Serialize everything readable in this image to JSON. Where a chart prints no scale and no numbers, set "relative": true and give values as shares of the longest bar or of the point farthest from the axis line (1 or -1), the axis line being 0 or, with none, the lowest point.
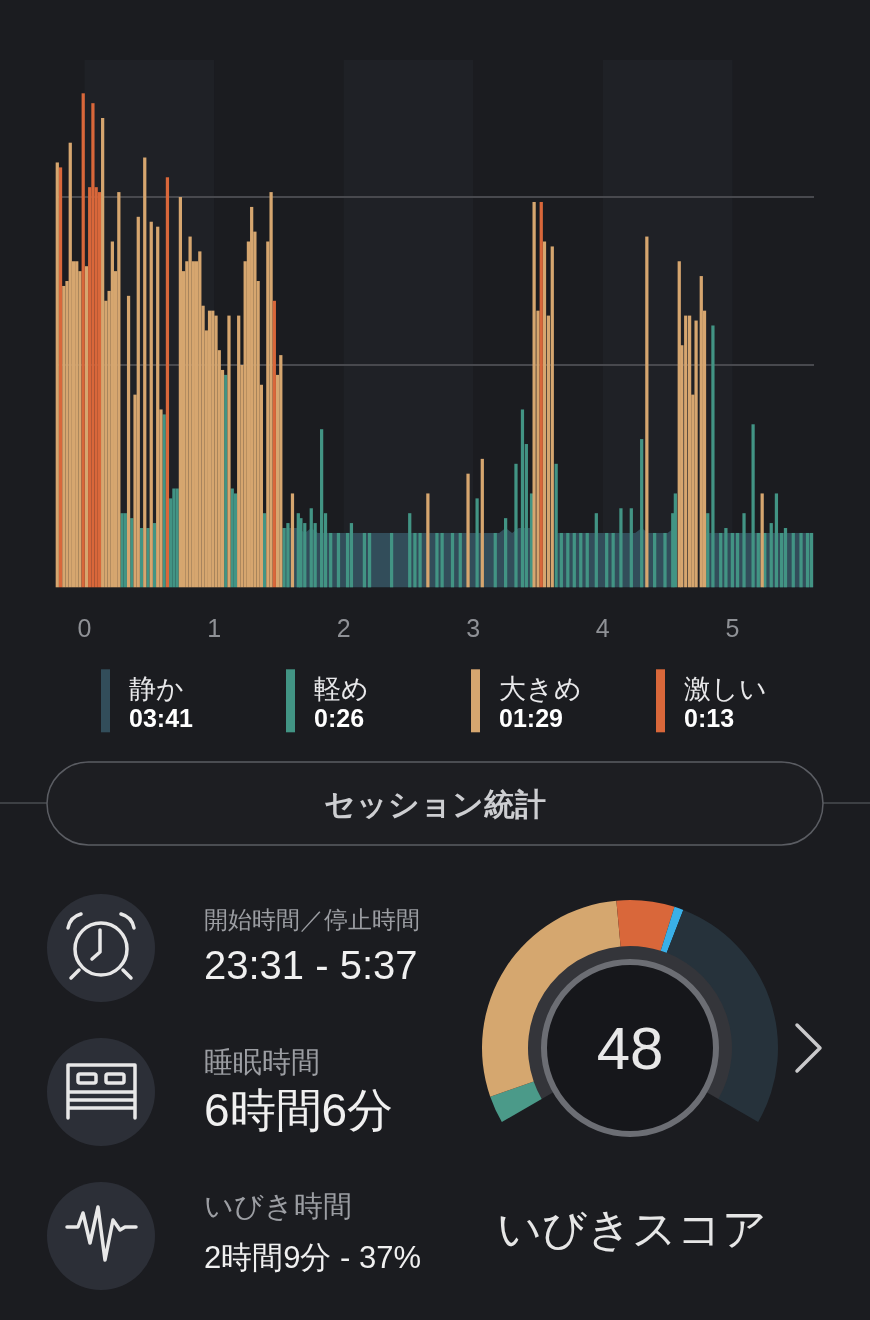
{
  "chart_data": [
    {
      "type": "bar",
      "relative": true,
      "xlim": [
        -0.22,
        5.63
      ],
      "xticks": [
        0,
        1,
        2,
        3,
        4,
        5
      ],
      "legend": "bottom",
      "bands": [
        {
          "axis": "x",
          "from": 0,
          "to": 1,
          "color": "#1f2126"
        },
        {
          "axis": "x",
          "from": 2,
          "to": 3,
          "color": "#1f2126"
        },
        {
          "axis": "x",
          "from": 4,
          "to": 5,
          "color": "#1f2126"
        }
      ],
      "ref_lines": [
        {
          "axis": "y",
          "value": 0.45,
          "color": "#48494e"
        },
        {
          "axis": "y",
          "value": 0.79,
          "color": "#48494e"
        }
      ],
      "series": [
        {
          "name": "静か",
          "type": "area",
          "color": "#324d5a",
          "x": [
            1.55,
            1.6,
            1.65,
            1.7,
            1.75,
            1.8,
            1.85,
            1.9,
            1.95,
            2,
            2.05,
            2.1,
            2.15,
            2.2,
            2.25,
            2.3,
            2.35,
            2.4,
            2.45,
            2.5,
            2.55,
            2.6,
            2.65,
            2.7,
            2.75,
            2.8,
            2.85,
            2.9,
            2.95,
            3,
            3.05,
            3.1,
            3.15,
            3.2,
            3.25,
            3.3,
            3.35,
            3.4,
            3.45,
            3.65,
            3.7,
            3.75,
            3.8,
            3.85,
            3.9,
            3.95,
            4,
            4.05,
            4.1,
            4.15,
            4.2,
            4.25,
            4.3,
            4.35,
            4.4,
            4.45,
            4.5,
            4.55,
            4.8,
            4.85,
            4.9,
            4.95,
            5,
            5.05,
            5.1,
            5.15,
            5.2,
            5.25,
            5.3,
            5.35,
            5.4,
            5.45,
            5.5,
            5.55,
            5.6,
            5.625
          ],
          "values": [
            0.12,
            0.12,
            0.12,
            0.11,
            0.12,
            0.11,
            0.11,
            0.11,
            0.11,
            0.11,
            0.11,
            0.11,
            0.11,
            0.11,
            0.11,
            0.11,
            0.11,
            0.11,
            0.11,
            0.11,
            0.11,
            0.11,
            0.11,
            0.11,
            0.11,
            0.11,
            0.11,
            0.11,
            0.11,
            0.11,
            0.11,
            0.11,
            0.11,
            0.11,
            0.12,
            0.11,
            0.12,
            0.12,
            0.12,
            0.11,
            0.11,
            0.11,
            0.11,
            0.11,
            0.11,
            0.11,
            0.11,
            0.11,
            0.11,
            0.11,
            0.11,
            0.11,
            0.12,
            0.11,
            0.11,
            0.11,
            0.11,
            0.12,
            0.11,
            0.11,
            0.11,
            0.11,
            0.11,
            0.11,
            0.11,
            0.11,
            0.11,
            0.11,
            0.11,
            0.11,
            0.11,
            0.11,
            0.11,
            0.11,
            0.11,
            0.11
          ]
        },
        {
          "name": "軽め",
          "color": "#429484",
          "x": [
            0.29,
            0.315,
            0.365,
            0.44,
            0.49,
            0.54,
            0.615,
            0.665,
            0.69,
            0.715,
            1.09,
            1.14,
            1.165,
            1.39,
            1.54,
            1.57,
            1.65,
            1.67,
            1.7,
            1.75,
            1.78,
            1.83,
            1.86,
            1.9,
            1.96,
            2.03,
            2.06,
            2.16,
            2.2,
            2.37,
            2.51,
            2.55,
            2.59,
            2.72,
            2.76,
            2.84,
            2.9,
            3.03,
            3.17,
            3.25,
            3.33,
            3.38,
            3.41,
            3.45,
            3.64,
            3.68,
            3.73,
            3.78,
            3.83,
            3.88,
            3.95,
            4.03,
            4.08,
            4.14,
            4.22,
            4.3,
            4.4,
            4.48,
            4.54,
            4.56,
            4.81,
            4.85,
            4.91,
            4.95,
            5,
            5.04,
            5.09,
            5.16,
            5.2,
            5.25,
            5.3,
            5.34,
            5.38,
            5.41,
            5.47,
            5.53,
            5.58,
            5.61
          ],
          "values": [
            0.15,
            0.15,
            0.14,
            0.12,
            0.12,
            0.13,
            0.35,
            0.18,
            0.2,
            0.2,
            0.43,
            0.2,
            0.19,
            0.15,
            0.12,
            0.13,
            0.15,
            0.14,
            0.13,
            0.16,
            0.13,
            0.32,
            0.15,
            0.11,
            0.11,
            0.11,
            0.13,
            0.11,
            0.11,
            0.11,
            0.15,
            0.11,
            0.11,
            0.11,
            0.11,
            0.11,
            0.11,
            0.18,
            0.11,
            0.14,
            0.25,
            0.36,
            0.29,
            0.19,
            0.25,
            0.11,
            0.11,
            0.11,
            0.11,
            0.11,
            0.15,
            0.11,
            0.11,
            0.16,
            0.16,
            0.3,
            0.11,
            0.11,
            0.15,
            0.19,
            0.15,
            0.53,
            0.11,
            0.12,
            0.11,
            0.11,
            0.15,
            0.33,
            0.11,
            0.11,
            0.13,
            0.19,
            0.11,
            0.12,
            0.11,
            0.11,
            0.11,
            0.11
          ]
        },
        {
          "name": "大きめ",
          "color": "#d6a66f",
          "x": [
            -0.21,
            -0.16,
            -0.135,
            -0.11,
            -0.085,
            -0.06,
            -0.035,
            0.015,
            0.14,
            0.165,
            0.19,
            0.215,
            0.24,
            0.265,
            0.34,
            0.39,
            0.415,
            0.465,
            0.515,
            0.565,
            0.59,
            0.74,
            0.765,
            0.79,
            0.815,
            0.84,
            0.865,
            0.89,
            0.915,
            0.94,
            0.965,
            0.99,
            1.015,
            1.04,
            1.065,
            1.115,
            1.19,
            1.215,
            1.24,
            1.265,
            1.29,
            1.315,
            1.34,
            1.365,
            1.415,
            1.44,
            1.49,
            1.515,
            1.605,
            2.65,
            2.96,
            3.07,
            3.47,
            3.5,
            3.55,
            3.58,
            3.61,
            4.34,
            4.59,
            4.61,
            4.64,
            4.67,
            4.695,
            4.72,
            4.76,
            4.785,
            5.23
          ],
          "values": [
            0.86,
            0.61,
            0.62,
            0.9,
            0.66,
            0.66,
            0.64,
            0.65,
            0.95,
            0.58,
            0.6,
            0.7,
            0.64,
            0.8,
            0.59,
            0.39,
            0.75,
            0.87,
            0.74,
            0.73,
            0.36,
            0.79,
            0.64,
            0.66,
            0.71,
            0.66,
            0.66,
            0.68,
            0.57,
            0.52,
            0.56,
            0.56,
            0.55,
            0.48,
            0.44,
            0.55,
            0.55,
            0.45,
            0.66,
            0.7,
            0.77,
            0.72,
            0.62,
            0.41,
            0.7,
            0.8,
            0.43,
            0.47,
            0.19,
            0.19,
            0.23,
            0.26,
            0.78,
            0.56,
            0.7,
            0.55,
            0.69,
            0.71,
            0.66,
            0.49,
            0.55,
            0.55,
            0.39,
            0.54,
            0.63,
            0.56,
            0.19
          ]
        },
        {
          "name": "激しい",
          "color": "#d9673a",
          "x": [
            -0.185,
            -0.01,
            0.04,
            0.065,
            0.09,
            0.115,
            0.64,
            1.465,
            3.525
          ],
          "values": [
            0.85,
            1.0,
            0.81,
            0.98,
            0.81,
            0.8,
            0.83,
            0.58,
            0.78
          ]
        }
      ],
      "annotations": [
        "03:41",
        "0:26",
        "01:29",
        "0:13"
      ]
    },
    {
      "type": "other",
      "title": "セッション統計",
      "annotations": [
        "開始時間／停止時間",
        "23:31 - 5:37",
        "睡眠時間",
        "6時間6分",
        "いびき時間",
        "2時間9分 - 37%"
      ]
    },
    {
      "type": "donut",
      "title": "いびきスコア",
      "categories": [
        null,
        null,
        null,
        null,
        null
      ],
      "values": [
        4.5,
        43.3,
        9.5,
        1.5,
        41.2
      ],
      "colors": [
        "#4b9a89",
        "#d5a76f",
        "#d9673a",
        "#3ab0e8",
        "#26323b"
      ],
      "annotations": [
        "48"
      ]
    }
  ]
}
